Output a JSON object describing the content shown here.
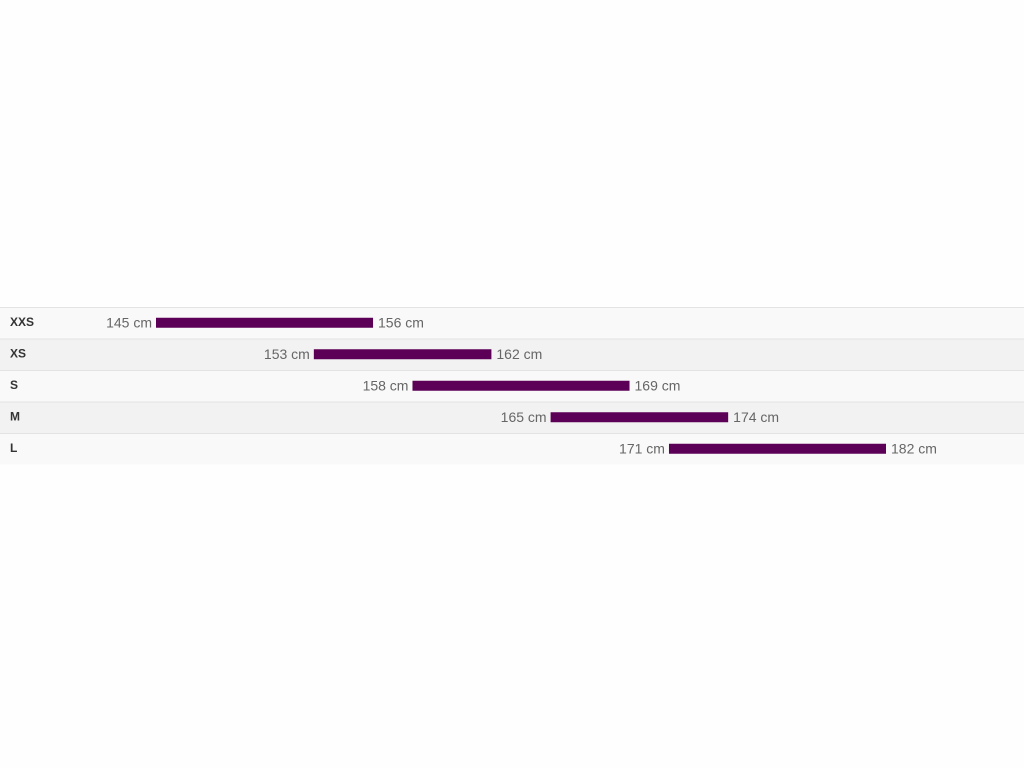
{
  "chart_data": {
    "type": "range",
    "categories": [
      "XXS",
      "XS",
      "S",
      "M",
      "L"
    ],
    "values": [
      [
        145,
        156
      ],
      [
        153,
        162
      ],
      [
        158,
        169
      ],
      [
        165,
        174
      ],
      [
        171,
        182
      ]
    ],
    "value_labels": [
      [
        "145 cm",
        "156 cm"
      ],
      [
        "153 cm",
        "162 cm"
      ],
      [
        "158 cm",
        "169 cm"
      ],
      [
        "165 cm",
        "174 cm"
      ],
      [
        "171 cm",
        "182 cm"
      ]
    ],
    "color": "#5c0057"
  }
}
